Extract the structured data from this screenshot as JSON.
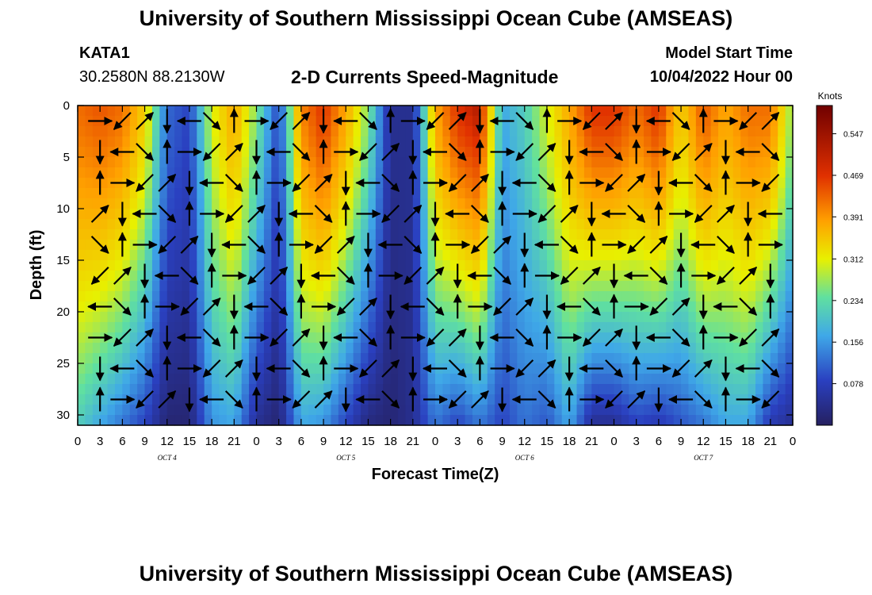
{
  "header": {
    "title": "University of Southern Mississippi Ocean Cube (AMSEAS)",
    "station_id": "KATA1",
    "coordinates": "30.2580N  88.2130W",
    "plot_title": "2-D Currents Speed-Magnitude",
    "model_start_label": "Model Start Time",
    "model_start_value": "10/04/2022 Hour 00"
  },
  "footer": {
    "title": "University of Southern Mississippi Ocean Cube (AMSEAS)"
  },
  "chart_data": {
    "type": "heatmap",
    "title": "2-D Currents Speed-Magnitude",
    "xlabel": "Forecast Time(Z)",
    "ylabel": "Depth (ft)",
    "x_range_hours": [
      0,
      96
    ],
    "ylim": [
      0,
      31
    ],
    "y_ticks": [
      0,
      5,
      10,
      15,
      20,
      25,
      30
    ],
    "x_tick_labels": [
      "0",
      "3",
      "6",
      "9",
      "12",
      "15",
      "18",
      "21",
      "0",
      "3",
      "6",
      "9",
      "12",
      "15",
      "18",
      "21",
      "0",
      "3",
      "6",
      "9",
      "12",
      "15",
      "18",
      "21",
      "0",
      "3",
      "6",
      "9",
      "12",
      "15",
      "18",
      "21",
      "0"
    ],
    "day_labels": [
      {
        "label": "OCT 4",
        "hour": 12
      },
      {
        "label": "OCT 5",
        "hour": 36
      },
      {
        "label": "OCT 6",
        "hour": 60
      },
      {
        "label": "OCT 7",
        "hour": 84
      }
    ],
    "colorbar": {
      "title": "Knots",
      "ticks": [
        "0.547",
        "0.469",
        "0.391",
        "0.312",
        "0.234",
        "0.156",
        "0.078"
      ],
      "min": 0,
      "max": 0.6
    },
    "depth_levels": [
      0,
      3,
      6,
      9,
      12,
      15,
      18,
      21,
      24,
      27,
      30
    ],
    "surface_speed_profile": [
      0.5,
      0.52,
      0.5,
      0.4,
      0.14,
      0.1,
      0.35,
      0.45,
      0.3,
      0.1,
      0.48,
      0.55,
      0.45,
      0.3,
      0.05,
      0.05,
      0.45,
      0.55,
      0.58,
      0.2,
      0.25,
      0.35,
      0.45,
      0.55,
      0.55,
      0.5,
      0.55,
      0.4,
      0.52,
      0.45,
      0.5,
      0.5,
      0.3
    ],
    "deep_speed_profile": [
      0.25,
      0.2,
      0.15,
      0.1,
      0.02,
      0.02,
      0.18,
      0.2,
      0.05,
      0.02,
      0.2,
      0.18,
      0.1,
      0.03,
      0.02,
      0.05,
      0.15,
      0.1,
      0.15,
      0.1,
      0.15,
      0.12,
      0.2,
      0.05,
      0.05,
      0.1,
      0.08,
      0.12,
      0.15,
      0.2,
      0.2,
      0.08,
      0.05
    ],
    "arrow_directions_deg": [
      -90,
      180,
      -45,
      0,
      45,
      90,
      135
    ],
    "colors": {
      "dark_red": "#800000",
      "red": "#d42000",
      "orange": "#ff9a00",
      "yellow": "#f2f000",
      "green": "#70e060",
      "cyan": "#3fc8d8",
      "blue": "#3060e0",
      "navy": "#252060",
      "arrow": "#000000"
    }
  }
}
